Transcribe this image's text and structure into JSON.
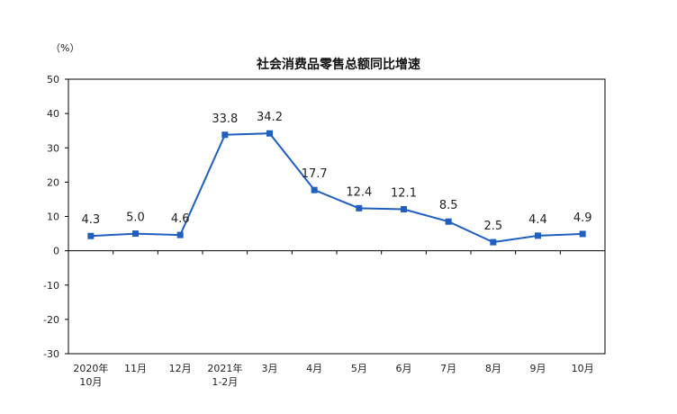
{
  "chart_data": {
    "type": "line",
    "title": "社会消费品零售总额同比增速",
    "unit": "（%）",
    "categories": [
      [
        "2020年",
        "10月"
      ],
      [
        "11月"
      ],
      [
        "12月"
      ],
      [
        "2021年",
        "1-2月"
      ],
      [
        "3月"
      ],
      [
        "4月"
      ],
      [
        "5月"
      ],
      [
        "6月"
      ],
      [
        "7月"
      ],
      [
        "8月"
      ],
      [
        "9月"
      ],
      [
        "10月"
      ]
    ],
    "series": [
      {
        "values": [
          4.3,
          5.0,
          4.6,
          33.8,
          34.2,
          17.7,
          12.4,
          12.1,
          8.5,
          2.5,
          4.4,
          4.9
        ],
        "labels": [
          "4.3",
          "5.0",
          "4.6",
          "33.8",
          "34.2",
          "17.7",
          "12.4",
          "12.1",
          "8.5",
          "2.5",
          "4.4",
          "4.9"
        ],
        "color": "#1f5fbf"
      }
    ],
    "ylim": [
      -30,
      50
    ],
    "yticks": [
      "50",
      "40",
      "30",
      "20",
      "10",
      "0",
      "-10",
      "-20",
      "-30"
    ],
    "grid": false
  }
}
